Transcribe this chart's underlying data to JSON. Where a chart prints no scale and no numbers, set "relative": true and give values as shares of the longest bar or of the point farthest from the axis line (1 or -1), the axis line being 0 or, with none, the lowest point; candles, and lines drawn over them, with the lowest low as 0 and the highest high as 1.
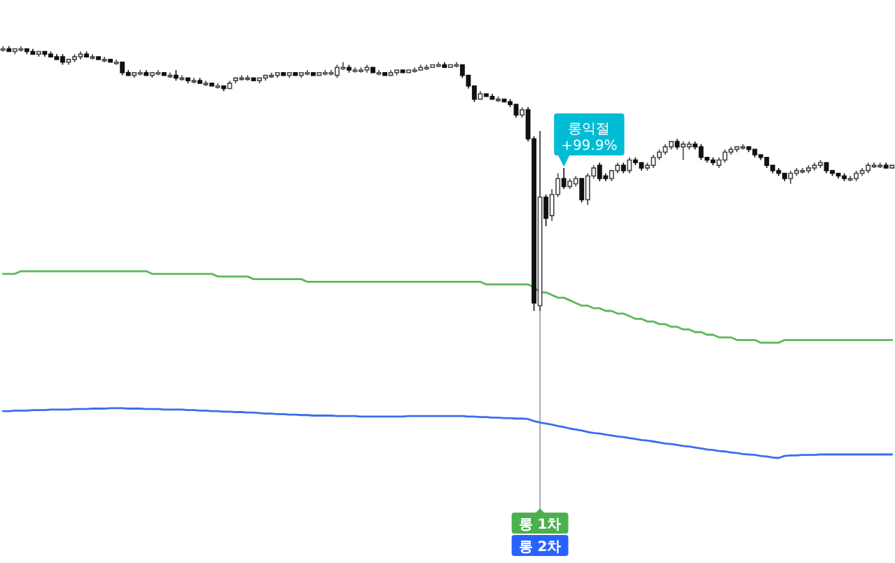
{
  "chart_data": [
    {
      "type": "candlestick",
      "relative": true,
      "categories": [
        null,
        null,
        null,
        null,
        null,
        null,
        null,
        null,
        null,
        null,
        null,
        null,
        null,
        null,
        null,
        null,
        null,
        null,
        null,
        null,
        null,
        null,
        null,
        null,
        null,
        null,
        null,
        null,
        null,
        null,
        null,
        null,
        null,
        null,
        null,
        null,
        null,
        null,
        null,
        null,
        null,
        null,
        null,
        null,
        null,
        null,
        null,
        null,
        null,
        null,
        null,
        null,
        null,
        null,
        null,
        null,
        null,
        null,
        null,
        null,
        null,
        null,
        null,
        null,
        null,
        null,
        null,
        null,
        null,
        null,
        null,
        null,
        null,
        null,
        null,
        null,
        null,
        null,
        null,
        null,
        null,
        null,
        null,
        null,
        null,
        null,
        null,
        null,
        null,
        null,
        null,
        null,
        null,
        null,
        null,
        null,
        null,
        null,
        null,
        null,
        null,
        null,
        null,
        null,
        null,
        null,
        null,
        null,
        null,
        null,
        null,
        null,
        null,
        null,
        null,
        null,
        null,
        null,
        null,
        null,
        null,
        null,
        null,
        null,
        null,
        null,
        null,
        null,
        null,
        null,
        null,
        null,
        null,
        null,
        null,
        null,
        null,
        null,
        null,
        null,
        null,
        null,
        null,
        null,
        null,
        null,
        null,
        null,
        null,
        null
      ],
      "ohlc": [
        [
          0.99,
          1.0,
          0.98,
          0.99
        ],
        [
          0.99,
          1.0,
          0.98,
          0.98
        ],
        [
          0.98,
          0.99,
          0.97,
          0.99
        ],
        [
          0.99,
          1.0,
          0.98,
          0.99
        ],
        [
          0.99,
          0.99,
          0.97,
          0.98
        ],
        [
          0.98,
          0.99,
          0.97,
          0.97
        ],
        [
          0.97,
          0.98,
          0.96,
          0.98
        ],
        [
          0.98,
          0.98,
          0.96,
          0.97
        ],
        [
          0.97,
          0.98,
          0.96,
          0.96
        ],
        [
          0.96,
          0.97,
          0.95,
          0.95
        ],
        [
          0.96,
          0.97,
          0.93,
          0.94
        ],
        [
          0.94,
          0.95,
          0.93,
          0.95
        ],
        [
          0.95,
          0.97,
          0.94,
          0.96
        ],
        [
          0.96,
          0.98,
          0.95,
          0.97
        ],
        [
          0.97,
          0.98,
          0.96,
          0.96
        ],
        [
          0.96,
          0.97,
          0.95,
          0.96
        ],
        [
          0.96,
          0.96,
          0.95,
          0.95
        ],
        [
          0.95,
          0.96,
          0.94,
          0.95
        ],
        [
          0.95,
          0.95,
          0.94,
          0.94
        ],
        [
          0.94,
          0.95,
          0.93,
          0.94
        ],
        [
          0.94,
          0.94,
          0.89,
          0.9
        ],
        [
          0.9,
          0.91,
          0.89,
          0.89
        ],
        [
          0.89,
          0.9,
          0.88,
          0.9
        ],
        [
          0.9,
          0.91,
          0.89,
          0.9
        ],
        [
          0.9,
          0.91,
          0.89,
          0.89
        ],
        [
          0.89,
          0.9,
          0.88,
          0.9
        ],
        [
          0.9,
          0.91,
          0.89,
          0.9
        ],
        [
          0.9,
          0.9,
          0.89,
          0.89
        ],
        [
          0.89,
          0.9,
          0.88,
          0.89
        ],
        [
          0.89,
          0.91,
          0.87,
          0.88
        ],
        [
          0.88,
          0.89,
          0.87,
          0.88
        ],
        [
          0.88,
          0.88,
          0.86,
          0.87
        ],
        [
          0.87,
          0.88,
          0.86,
          0.87
        ],
        [
          0.87,
          0.88,
          0.86,
          0.86
        ],
        [
          0.86,
          0.87,
          0.85,
          0.86
        ],
        [
          0.86,
          0.86,
          0.85,
          0.85
        ],
        [
          0.85,
          0.86,
          0.84,
          0.85
        ],
        [
          0.85,
          0.85,
          0.83,
          0.84
        ],
        [
          0.84,
          0.87,
          0.84,
          0.86
        ],
        [
          0.87,
          0.88,
          0.86,
          0.88
        ],
        [
          0.88,
          0.89,
          0.87,
          0.88
        ],
        [
          0.88,
          0.89,
          0.87,
          0.88
        ],
        [
          0.88,
          0.88,
          0.87,
          0.87
        ],
        [
          0.87,
          0.88,
          0.86,
          0.88
        ],
        [
          0.88,
          0.89,
          0.87,
          0.89
        ],
        [
          0.89,
          0.9,
          0.88,
          0.89
        ],
        [
          0.89,
          0.9,
          0.88,
          0.9
        ],
        [
          0.9,
          0.9,
          0.89,
          0.89
        ],
        [
          0.89,
          0.9,
          0.88,
          0.9
        ],
        [
          0.9,
          0.9,
          0.89,
          0.89
        ],
        [
          0.89,
          0.9,
          0.88,
          0.9
        ],
        [
          0.9,
          0.91,
          0.89,
          0.9
        ],
        [
          0.9,
          0.9,
          0.89,
          0.89
        ],
        [
          0.89,
          0.9,
          0.89,
          0.9
        ],
        [
          0.9,
          0.91,
          0.89,
          0.9
        ],
        [
          0.9,
          0.91,
          0.89,
          0.9
        ],
        [
          0.89,
          0.93,
          0.88,
          0.92
        ],
        [
          0.92,
          0.94,
          0.91,
          0.92
        ],
        [
          0.92,
          0.93,
          0.9,
          0.91
        ],
        [
          0.91,
          0.92,
          0.9,
          0.91
        ],
        [
          0.91,
          0.92,
          0.9,
          0.91
        ],
        [
          0.91,
          0.93,
          0.9,
          0.92
        ],
        [
          0.92,
          0.92,
          0.9,
          0.9
        ],
        [
          0.9,
          0.91,
          0.89,
          0.9
        ],
        [
          0.9,
          0.9,
          0.89,
          0.89
        ],
        [
          0.89,
          0.91,
          0.89,
          0.9
        ],
        [
          0.9,
          0.91,
          0.89,
          0.91
        ],
        [
          0.91,
          0.91,
          0.9,
          0.9
        ],
        [
          0.9,
          0.91,
          0.9,
          0.91
        ],
        [
          0.91,
          0.92,
          0.9,
          0.91
        ],
        [
          0.91,
          0.93,
          0.91,
          0.92
        ],
        [
          0.92,
          0.93,
          0.91,
          0.92
        ],
        [
          0.92,
          0.93,
          0.92,
          0.93
        ],
        [
          0.93,
          0.94,
          0.92,
          0.93
        ],
        [
          0.93,
          0.94,
          0.92,
          0.92
        ],
        [
          0.92,
          0.93,
          0.92,
          0.93
        ],
        [
          0.93,
          0.94,
          0.92,
          0.93
        ],
        [
          0.93,
          0.93,
          0.88,
          0.89
        ],
        [
          0.89,
          0.89,
          0.84,
          0.85
        ],
        [
          0.85,
          0.85,
          0.79,
          0.8
        ],
        [
          0.8,
          0.83,
          0.8,
          0.82
        ],
        [
          0.82,
          0.82,
          0.81,
          0.81
        ],
        [
          0.81,
          0.82,
          0.8,
          0.8
        ],
        [
          0.8,
          0.81,
          0.79,
          0.8
        ],
        [
          0.8,
          0.8,
          0.79,
          0.79
        ],
        [
          0.79,
          0.8,
          0.77,
          0.78
        ],
        [
          0.78,
          0.78,
          0.73,
          0.74
        ],
        [
          0.74,
          0.77,
          0.73,
          0.76
        ],
        [
          0.76,
          0.77,
          0.64,
          0.65
        ],
        [
          0.65,
          0.66,
          0.0,
          0.03
        ],
        [
          0.02,
          0.68,
          0.0,
          0.43
        ],
        [
          0.43,
          0.44,
          0.32,
          0.35
        ],
        [
          0.36,
          0.46,
          0.34,
          0.44
        ],
        [
          0.44,
          0.52,
          0.43,
          0.5
        ],
        [
          0.5,
          0.54,
          0.46,
          0.47
        ],
        [
          0.47,
          0.5,
          0.46,
          0.49
        ],
        [
          0.48,
          0.51,
          0.47,
          0.5
        ],
        [
          0.5,
          0.5,
          0.41,
          0.42
        ],
        [
          0.42,
          0.52,
          0.4,
          0.51
        ],
        [
          0.51,
          0.55,
          0.5,
          0.54
        ],
        [
          0.55,
          0.56,
          0.49,
          0.5
        ],
        [
          0.51,
          0.52,
          0.49,
          0.5
        ],
        [
          0.5,
          0.53,
          0.49,
          0.53
        ],
        [
          0.53,
          0.56,
          0.52,
          0.55
        ],
        [
          0.55,
          0.56,
          0.52,
          0.53
        ],
        [
          0.53,
          0.58,
          0.52,
          0.57
        ],
        [
          0.57,
          0.58,
          0.55,
          0.56
        ],
        [
          0.56,
          0.56,
          0.53,
          0.54
        ],
        [
          0.54,
          0.56,
          0.53,
          0.55
        ],
        [
          0.55,
          0.59,
          0.54,
          0.58
        ],
        [
          0.58,
          0.61,
          0.57,
          0.6
        ],
        [
          0.6,
          0.63,
          0.59,
          0.62
        ],
        [
          0.62,
          0.64,
          0.61,
          0.64
        ],
        [
          0.64,
          0.65,
          0.61,
          0.62
        ],
        [
          0.62,
          0.64,
          0.57,
          0.63
        ],
        [
          0.62,
          0.64,
          0.61,
          0.63
        ],
        [
          0.63,
          0.64,
          0.61,
          0.62
        ],
        [
          0.62,
          0.63,
          0.57,
          0.58
        ],
        [
          0.58,
          0.58,
          0.56,
          0.57
        ],
        [
          0.57,
          0.58,
          0.55,
          0.56
        ],
        [
          0.55,
          0.58,
          0.54,
          0.57
        ],
        [
          0.57,
          0.61,
          0.56,
          0.6
        ],
        [
          0.6,
          0.62,
          0.59,
          0.61
        ],
        [
          0.61,
          0.62,
          0.6,
          0.62
        ],
        [
          0.62,
          0.63,
          0.61,
          0.62
        ],
        [
          0.62,
          0.62,
          0.6,
          0.61
        ],
        [
          0.61,
          0.61,
          0.58,
          0.59
        ],
        [
          0.59,
          0.59,
          0.57,
          0.58
        ],
        [
          0.58,
          0.58,
          0.54,
          0.55
        ],
        [
          0.55,
          0.55,
          0.52,
          0.53
        ],
        [
          0.53,
          0.54,
          0.51,
          0.52
        ],
        [
          0.52,
          0.52,
          0.49,
          0.5
        ],
        [
          0.5,
          0.53,
          0.48,
          0.52
        ],
        [
          0.52,
          0.54,
          0.51,
          0.53
        ],
        [
          0.53,
          0.54,
          0.52,
          0.53
        ],
        [
          0.53,
          0.55,
          0.52,
          0.54
        ],
        [
          0.54,
          0.56,
          0.53,
          0.55
        ],
        [
          0.55,
          0.57,
          0.54,
          0.56
        ],
        [
          0.56,
          0.56,
          0.52,
          0.53
        ],
        [
          0.53,
          0.53,
          0.51,
          0.52
        ],
        [
          0.52,
          0.52,
          0.5,
          0.51
        ],
        [
          0.51,
          0.52,
          0.49,
          0.5
        ],
        [
          0.5,
          0.51,
          0.49,
          0.5
        ],
        [
          0.5,
          0.53,
          0.49,
          0.52
        ],
        [
          0.52,
          0.54,
          0.51,
          0.53
        ],
        [
          0.53,
          0.56,
          0.52,
          0.55
        ],
        [
          0.55,
          0.56,
          0.54,
          0.55
        ],
        [
          0.55,
          0.56,
          0.54,
          0.55
        ],
        [
          0.55,
          0.56,
          0.54,
          0.54
        ],
        [
          0.54,
          0.55,
          0.54,
          0.55
        ]
      ],
      "series": [
        {
          "type": "line",
          "color": "#5cb85c",
          "values": [
            0.14,
            0.14,
            0.14,
            0.15,
            0.15,
            0.15,
            0.15,
            0.15,
            0.15,
            0.15,
            0.15,
            0.15,
            0.15,
            0.15,
            0.15,
            0.15,
            0.15,
            0.15,
            0.15,
            0.15,
            0.15,
            0.15,
            0.15,
            0.15,
            0.15,
            0.14,
            0.14,
            0.14,
            0.14,
            0.14,
            0.14,
            0.14,
            0.14,
            0.14,
            0.14,
            0.14,
            0.13,
            0.13,
            0.13,
            0.13,
            0.13,
            0.13,
            0.12,
            0.12,
            0.12,
            0.12,
            0.12,
            0.12,
            0.12,
            0.12,
            0.12,
            0.11,
            0.11,
            0.11,
            0.11,
            0.11,
            0.11,
            0.11,
            0.11,
            0.11,
            0.11,
            0.11,
            0.11,
            0.11,
            0.11,
            0.11,
            0.11,
            0.11,
            0.11,
            0.11,
            0.11,
            0.11,
            0.11,
            0.11,
            0.11,
            0.11,
            0.11,
            0.11,
            0.11,
            0.11,
            0.11,
            0.1,
            0.1,
            0.1,
            0.1,
            0.1,
            0.1,
            0.1,
            0.1,
            0.09,
            0.07,
            0.07,
            0.06,
            0.05,
            0.05,
            0.04,
            0.03,
            0.02,
            0.02,
            0.01,
            0.01,
            0.0,
            0.0,
            -0.01,
            -0.01,
            -0.02,
            -0.03,
            -0.03,
            -0.04,
            -0.04,
            -0.05,
            -0.05,
            -0.06,
            -0.06,
            -0.07,
            -0.07,
            -0.08,
            -0.08,
            -0.09,
            -0.09,
            -0.1,
            -0.1,
            -0.1,
            -0.11,
            -0.11,
            -0.11,
            -0.11,
            -0.12,
            -0.12,
            -0.12,
            -0.12,
            -0.11,
            -0.11,
            -0.11,
            -0.11,
            -0.11,
            -0.11,
            -0.11,
            -0.11,
            -0.11,
            -0.11,
            -0.11,
            -0.11,
            -0.11,
            -0.11,
            -0.11,
            -0.11,
            -0.11,
            -0.11,
            -0.11
          ]
        }
      ],
      "annotations": [
        "롱익절 +99.9%"
      ]
    },
    {
      "type": "line",
      "relative": true,
      "categories": [
        null,
        null,
        null,
        null,
        null,
        null,
        null,
        null,
        null,
        null,
        null,
        null,
        null,
        null,
        null,
        null,
        null,
        null,
        null,
        null,
        null,
        null,
        null,
        null,
        null,
        null,
        null,
        null,
        null,
        null,
        null,
        null,
        null,
        null,
        null,
        null,
        null,
        null,
        null,
        null,
        null,
        null,
        null,
        null,
        null,
        null,
        null,
        null,
        null,
        null,
        null,
        null,
        null,
        null,
        null,
        null,
        null,
        null,
        null,
        null,
        null,
        null,
        null,
        null,
        null,
        null,
        null,
        null,
        null,
        null,
        null,
        null,
        null,
        null,
        null,
        null,
        null,
        null,
        null,
        null,
        null,
        null,
        null,
        null,
        null,
        null,
        null,
        null,
        null,
        null,
        null,
        null,
        null,
        null,
        null,
        null,
        null,
        null,
        null,
        null,
        null,
        null,
        null,
        null,
        null,
        null,
        null,
        null,
        null,
        null,
        null,
        null,
        null,
        null,
        null,
        null,
        null,
        null,
        null,
        null,
        null,
        null,
        null,
        null,
        null,
        null,
        null,
        null,
        null,
        null,
        null,
        null,
        null,
        null,
        null,
        null,
        null,
        null,
        null,
        null,
        null,
        null,
        null,
        null,
        null,
        null,
        null,
        null,
        null,
        null
      ],
      "series": [
        {
          "type": "line",
          "color": "#3a6df0",
          "values": [
            0.94,
            0.94,
            0.95,
            0.95,
            0.95,
            0.96,
            0.96,
            0.96,
            0.97,
            0.97,
            0.97,
            0.97,
            0.98,
            0.98,
            0.98,
            0.99,
            0.99,
            0.99,
            1.0,
            1.0,
            1.0,
            0.99,
            0.99,
            0.99,
            0.98,
            0.98,
            0.98,
            0.97,
            0.97,
            0.97,
            0.97,
            0.96,
            0.96,
            0.95,
            0.95,
            0.94,
            0.94,
            0.93,
            0.93,
            0.92,
            0.92,
            0.91,
            0.91,
            0.9,
            0.89,
            0.89,
            0.88,
            0.88,
            0.87,
            0.87,
            0.86,
            0.86,
            0.85,
            0.85,
            0.85,
            0.85,
            0.84,
            0.84,
            0.84,
            0.84,
            0.83,
            0.83,
            0.83,
            0.83,
            0.83,
            0.83,
            0.83,
            0.83,
            0.84,
            0.84,
            0.84,
            0.84,
            0.84,
            0.84,
            0.84,
            0.84,
            0.84,
            0.84,
            0.83,
            0.83,
            0.82,
            0.82,
            0.81,
            0.81,
            0.8,
            0.8,
            0.79,
            0.79,
            0.78,
            0.74,
            0.71,
            0.69,
            0.67,
            0.64,
            0.62,
            0.59,
            0.57,
            0.55,
            0.52,
            0.5,
            0.49,
            0.47,
            0.45,
            0.43,
            0.42,
            0.4,
            0.38,
            0.36,
            0.35,
            0.33,
            0.31,
            0.29,
            0.28,
            0.26,
            0.24,
            0.23,
            0.21,
            0.19,
            0.17,
            0.16,
            0.14,
            0.13,
            0.11,
            0.1,
            0.08,
            0.07,
            0.06,
            0.04,
            0.03,
            0.01,
            0.0,
            0.04,
            0.05,
            0.05,
            0.06,
            0.06,
            0.06,
            0.07,
            0.07,
            0.07,
            0.07,
            0.07,
            0.07,
            0.07,
            0.07,
            0.07,
            0.07,
            0.07,
            0.07,
            0.07
          ]
        }
      ],
      "annotations": [
        "롱 1차",
        "롱 2차"
      ]
    }
  ]
}
